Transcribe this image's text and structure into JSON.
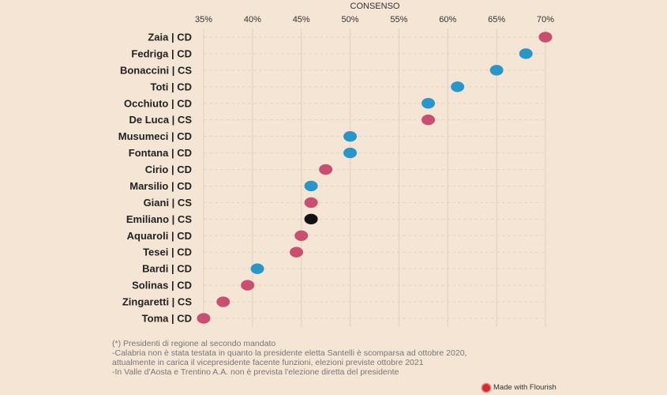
{
  "chart_data": {
    "type": "scatter",
    "subtype": "dot-plot",
    "title": "",
    "xlabel": "CONSENSO",
    "ylabel": "",
    "xlim": [
      35,
      70
    ],
    "x_ticks": [
      35,
      40,
      45,
      50,
      55,
      60,
      65,
      70
    ],
    "x_tick_labels": [
      "35%",
      "40%",
      "45%",
      "50%",
      "55%",
      "60%",
      "65%",
      "70%"
    ],
    "grid": true,
    "categories": [
      "Zaia | CD",
      "Fedriga | CD",
      "Bonaccini | CS",
      "Toti | CD",
      "Occhiuto | CD",
      "De Luca | CS",
      "Musumeci | CD",
      "Fontana | CD",
      "Cirio | CD",
      "Marsilio | CD",
      "Giani | CS",
      "Emiliano | CS",
      "Aquaroli | CD",
      "Tesei | CD",
      "Bardi | CD",
      "Solinas | CD",
      "Zingaretti | CS",
      "Toma | CD"
    ],
    "values": [
      70,
      68,
      65,
      61,
      58,
      58,
      50,
      50,
      47.5,
      46,
      46,
      46,
      45,
      44.5,
      40.5,
      39.5,
      37,
      35
    ],
    "point_colors": [
      "#c84f70",
      "#2a96c8",
      "#2a96c8",
      "#2a96c8",
      "#2a96c8",
      "#c84f70",
      "#2a96c8",
      "#2a96c8",
      "#c84f70",
      "#2a96c8",
      "#c84f70",
      "#111111",
      "#c84f70",
      "#c84f70",
      "#2a96c8",
      "#c84f70",
      "#c84f70",
      "#c84f70"
    ]
  },
  "footnotes": [
    "(*) Presidenti di regione al secondo mandato",
    "-Calabria non è stata testata in quanto la presidente eletta Santelli è scomparsa ad ottobre 2020,",
    "attualmente in carica il vicepresidente facente funzioni, elezioni previste ottobre 2021",
    "-In Valle d'Aosta e Trentino A.A. non è prevista l'elezione diretta del presidente"
  ],
  "credit": {
    "label": "Made with Flourish",
    "icon": "flourish-logo-icon"
  }
}
